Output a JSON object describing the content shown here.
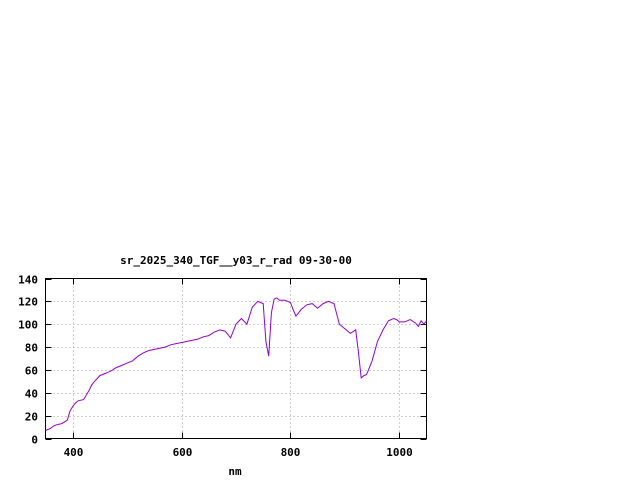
{
  "chart_data": {
    "type": "line",
    "title": "sr_2025_340_TGF__y03_r_rad 09-30-00",
    "xlabel": "nm",
    "ylabel": "",
    "xlim": [
      350,
      1050
    ],
    "ylim": [
      0,
      140
    ],
    "xticks": [
      400,
      600,
      800,
      1000
    ],
    "yticks": [
      0,
      20,
      40,
      60,
      80,
      100,
      120,
      140
    ],
    "grid": true,
    "series": [
      {
        "color": "#9400d3",
        "x": [
          350,
          355,
          360,
          365,
          370,
          380,
          390,
          395,
          400,
          405,
          410,
          420,
          430,
          435,
          440,
          450,
          460,
          470,
          480,
          490,
          500,
          510,
          520,
          530,
          540,
          550,
          560,
          570,
          580,
          590,
          600,
          610,
          620,
          630,
          640,
          650,
          660,
          670,
          680,
          690,
          700,
          710,
          720,
          730,
          740,
          750,
          755,
          760,
          765,
          770,
          775,
          780,
          790,
          800,
          805,
          810,
          820,
          830,
          840,
          850,
          860,
          870,
          880,
          890,
          900,
          910,
          920,
          925,
          930,
          935,
          940,
          950,
          960,
          970,
          980,
          990,
          995,
          1000,
          1010,
          1020,
          1030,
          1035,
          1040,
          1045,
          1050
        ],
        "values": [
          7,
          8,
          9,
          11,
          12,
          13,
          16,
          24,
          28,
          31,
          33,
          34,
          42,
          47,
          50,
          55,
          57,
          59,
          62,
          64,
          66,
          68,
          72,
          75,
          77,
          78,
          79,
          80,
          82,
          83,
          84,
          85,
          86,
          87,
          89,
          90,
          93,
          95,
          94,
          88,
          100,
          105,
          100,
          115,
          120,
          118,
          85,
          72,
          110,
          122,
          123,
          121,
          121,
          119,
          113,
          107,
          113,
          117,
          118,
          114,
          118,
          120,
          118,
          100,
          96,
          92,
          95,
          75,
          53,
          55,
          56,
          68,
          85,
          95,
          103,
          105,
          104,
          102,
          102,
          104,
          101,
          98,
          103,
          100,
          103
        ]
      }
    ]
  }
}
